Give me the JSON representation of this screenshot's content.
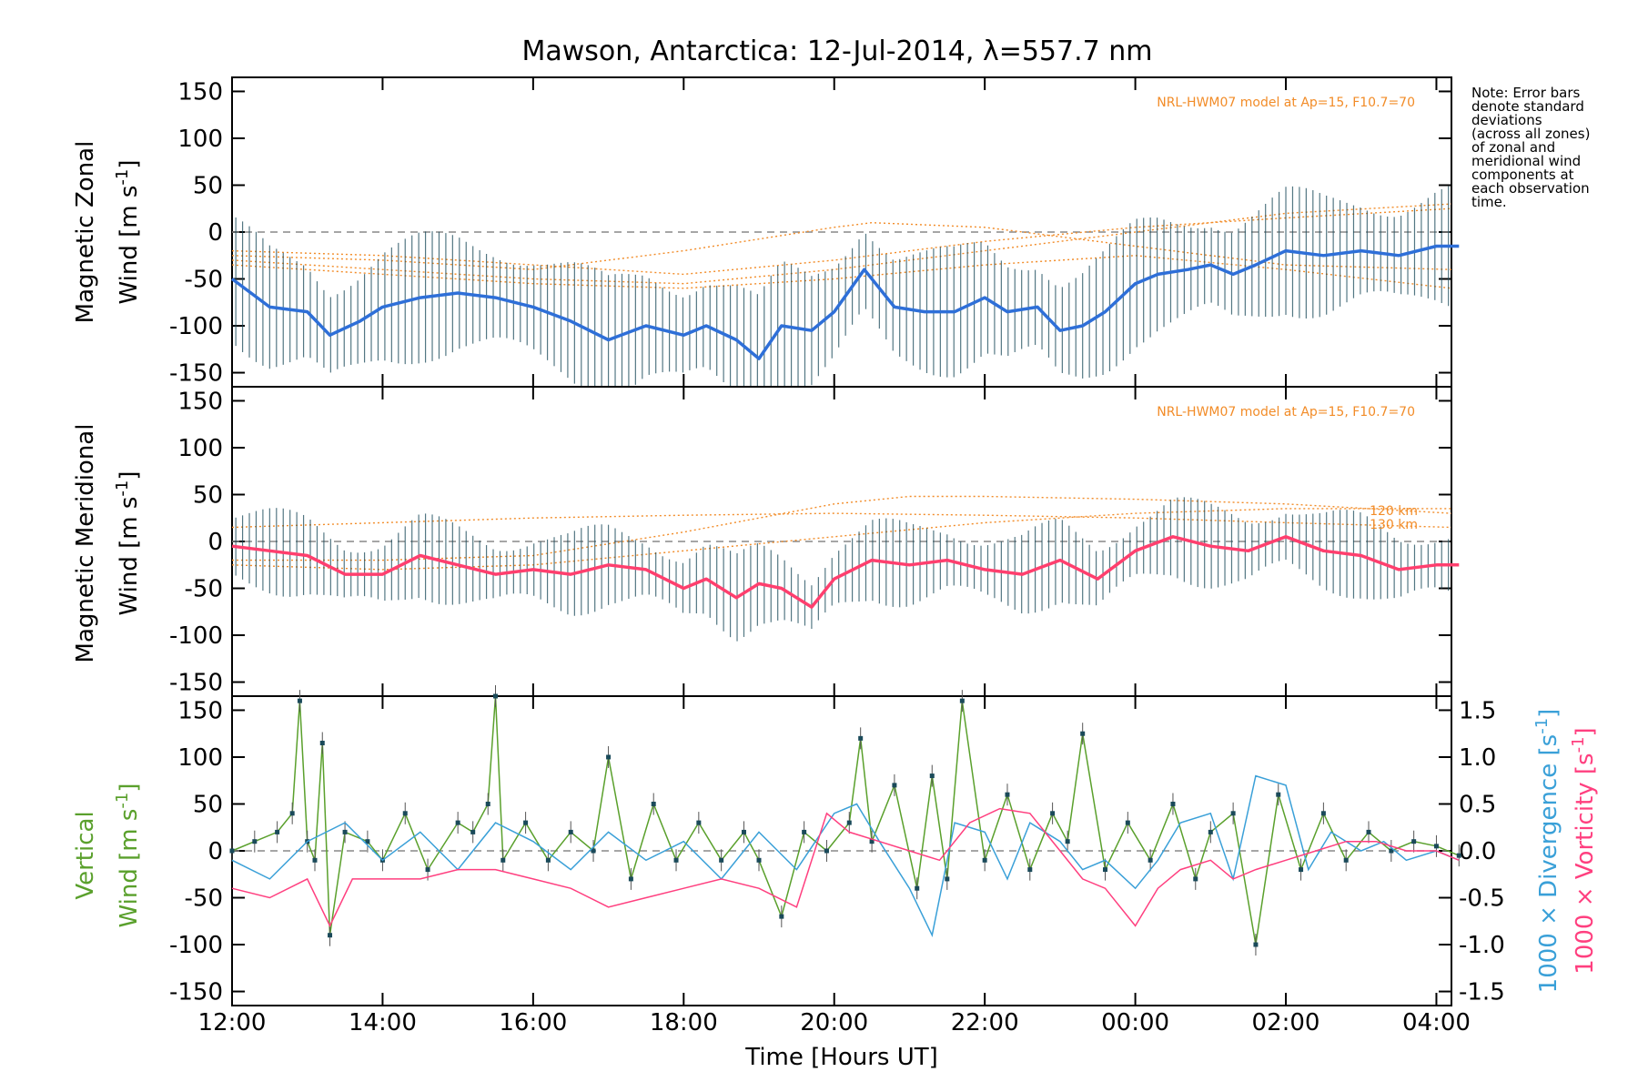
{
  "title": "Mawson, Antarctica: 12-Jul-2014, λ=557.7 nm",
  "note_lines": [
    "Note: Error bars",
    "denote standard",
    "deviations",
    "(across all zones)",
    "of zonal and",
    "meridional wind",
    "components at",
    "each observation",
    "time."
  ],
  "colors": {
    "zonal": "#2e6fd8",
    "zonal_light": "#4fa3e8",
    "meridional": "#ff3f6e",
    "model": "#f28c28",
    "vertical": "#5aa02c",
    "divergence": "#3aa0d8",
    "vorticity": "#ff3f7f",
    "errorbar": "#1a4a5a",
    "zone_points": "#a9a3e0"
  },
  "chart_data": [
    {
      "type": "line",
      "panel": "zonal",
      "ylabel_line1": "Magnetic Zonal",
      "ylabel_line2": "Wind [m s",
      "ylabel_sup": "-1",
      "ylabel_close": "]",
      "ylim": [
        -165,
        165
      ],
      "yticks": [
        -150,
        -100,
        -50,
        0,
        50,
        100,
        150
      ],
      "model_label": "NRL-HWM07 model at Ap=15, F10.7=70",
      "x_hours": [
        12,
        12.5,
        13,
        13.3,
        13.7,
        14,
        14.5,
        15,
        15.5,
        16,
        16.5,
        17,
        17.5,
        18,
        18.3,
        18.7,
        19,
        19.3,
        19.7,
        20,
        20.4,
        20.8,
        21.2,
        21.6,
        22,
        22.3,
        22.7,
        23,
        23.3,
        23.6,
        24,
        24.3,
        24.7,
        25,
        25.3,
        25.6,
        26,
        26.5,
        27,
        27.5,
        28,
        28.3
      ],
      "values": [
        -50,
        -80,
        -85,
        -110,
        -95,
        -80,
        -70,
        -65,
        -70,
        -80,
        -95,
        -115,
        -100,
        -110,
        -100,
        -115,
        -135,
        -100,
        -105,
        -85,
        -40,
        -80,
        -85,
        -85,
        -70,
        -85,
        -80,
        -105,
        -100,
        -85,
        -55,
        -45,
        -40,
        -35,
        -45,
        -35,
        -20,
        -25,
        -20,
        -25,
        -15,
        -15
      ],
      "model_curves": [
        {
          "x_hours": [
            12,
            14,
            16,
            18,
            20,
            22,
            24,
            26,
            28.2
          ],
          "values": [
            -20,
            -25,
            -35,
            -45,
            -30,
            -10,
            5,
            15,
            25
          ]
        },
        {
          "x_hours": [
            12,
            14,
            16,
            18,
            20,
            20.5,
            22,
            24,
            26,
            28.2
          ],
          "values": [
            -25,
            -30,
            -40,
            -20,
            5,
            10,
            5,
            -15,
            -35,
            -40
          ]
        },
        {
          "x_hours": [
            12,
            14,
            16,
            18,
            20,
            22,
            24,
            26,
            28.2
          ],
          "values": [
            -30,
            -40,
            -50,
            -55,
            -40,
            -20,
            0,
            20,
            30
          ]
        },
        {
          "x_hours": [
            12,
            14,
            16,
            18,
            20,
            22,
            24,
            26,
            28.2
          ],
          "values": [
            -35,
            -45,
            -55,
            -60,
            -50,
            -35,
            -25,
            -40,
            -60
          ]
        }
      ]
    },
    {
      "type": "line",
      "panel": "meridional",
      "ylabel_line1": "Magnetic Meridional",
      "ylabel_line2": "Wind [m s",
      "ylabel_sup": "-1",
      "ylabel_close": "]",
      "ylim": [
        -165,
        165
      ],
      "yticks": [
        -150,
        -100,
        -50,
        0,
        50,
        100,
        150
      ],
      "model_label": "NRL-HWM07 model at Ap=15, F10.7=70",
      "model_altitude_labels": [
        "120 km",
        "130 km"
      ],
      "x_hours": [
        12,
        12.5,
        13,
        13.5,
        14,
        14.5,
        15,
        15.5,
        16,
        16.5,
        17,
        17.5,
        18,
        18.3,
        18.7,
        19,
        19.3,
        19.7,
        20,
        20.5,
        21,
        21.5,
        22,
        22.5,
        23,
        23.5,
        24,
        24.5,
        25,
        25.5,
        26,
        26.5,
        27,
        27.5,
        28,
        28.3
      ],
      "values": [
        -5,
        -10,
        -15,
        -35,
        -35,
        -15,
        -25,
        -35,
        -30,
        -35,
        -25,
        -30,
        -50,
        -40,
        -60,
        -45,
        -50,
        -70,
        -40,
        -20,
        -25,
        -20,
        -30,
        -35,
        -20,
        -40,
        -10,
        5,
        -5,
        -10,
        5,
        -10,
        -15,
        -30,
        -25,
        -25
      ],
      "model_curves": [
        {
          "x_hours": [
            12,
            14,
            16,
            18,
            20,
            21,
            22,
            24,
            26,
            28.2
          ],
          "values": [
            -20,
            -20,
            -15,
            10,
            40,
            48,
            48,
            45,
            40,
            30
          ]
        },
        {
          "x_hours": [
            12,
            14,
            16,
            18,
            20,
            22,
            24,
            26,
            28.2
          ],
          "values": [
            15,
            20,
            25,
            28,
            30,
            28,
            25,
            20,
            15
          ]
        },
        {
          "x_hours": [
            12,
            14,
            16,
            18,
            20,
            22,
            24,
            26,
            28.2
          ],
          "values": [
            -25,
            -30,
            -25,
            -10,
            5,
            20,
            30,
            35,
            35
          ]
        }
      ]
    },
    {
      "type": "line",
      "panel": "vertical",
      "ylabel_line1": "Vertical",
      "ylabel_line2": "Wind [m s",
      "ylabel_sup": "-1",
      "ylabel_close": "]",
      "ylim": [
        -165,
        165
      ],
      "yticks": [
        -150,
        -100,
        -50,
        0,
        50,
        100,
        150
      ],
      "y2lim": [
        -1.65,
        1.65
      ],
      "y2ticks": [
        "-1.5",
        "-1.0",
        "-0.5",
        "0.0",
        "0.5",
        "1.0",
        "1.5"
      ],
      "y2label_div": "1000 × Divergence [s",
      "y2label_vort": "1000 × Vorticity [s",
      "y2label_sup": "-1",
      "y2label_close": "]",
      "series": [
        {
          "name": "Vertical",
          "x_hours": [
            12,
            12.3,
            12.6,
            12.8,
            12.9,
            13.0,
            13.1,
            13.2,
            13.3,
            13.5,
            13.8,
            14,
            14.3,
            14.6,
            15,
            15.2,
            15.4,
            15.5,
            15.6,
            15.9,
            16.2,
            16.5,
            16.8,
            17.0,
            17.3,
            17.6,
            17.9,
            18.2,
            18.5,
            18.8,
            19.0,
            19.3,
            19.6,
            19.9,
            20.2,
            20.35,
            20.5,
            20.8,
            21.1,
            21.3,
            21.5,
            21.7,
            22.0,
            22.3,
            22.6,
            22.9,
            23.1,
            23.3,
            23.6,
            23.9,
            24.2,
            24.5,
            24.8,
            25.0,
            25.3,
            25.6,
            25.9,
            26.2,
            26.5,
            26.8,
            27.1,
            27.4,
            27.7,
            28.0,
            28.3
          ],
          "values": [
            0,
            10,
            20,
            40,
            160,
            10,
            -10,
            115,
            -90,
            20,
            10,
            -10,
            40,
            -20,
            30,
            20,
            50,
            165,
            -10,
            30,
            -10,
            20,
            0,
            100,
            -30,
            50,
            -10,
            30,
            -10,
            20,
            -10,
            -70,
            20,
            0,
            30,
            120,
            10,
            70,
            -40,
            80,
            -30,
            160,
            -10,
            60,
            -20,
            40,
            10,
            125,
            -20,
            30,
            -10,
            50,
            -30,
            20,
            40,
            -100,
            60,
            -20,
            40,
            -10,
            20,
            0,
            10,
            5,
            -5
          ]
        },
        {
          "name": "Divergence",
          "x_hours": [
            12,
            12.5,
            13,
            13.5,
            14,
            14.5,
            15,
            15.5,
            16,
            16.5,
            17,
            17.5,
            18,
            18.5,
            19,
            19.5,
            20,
            20.3,
            20.6,
            21,
            21.3,
            21.6,
            22,
            22.3,
            22.6,
            23,
            23.3,
            23.6,
            24,
            24.3,
            24.6,
            25,
            25.3,
            25.6,
            26,
            26.3,
            26.6,
            27,
            27.3,
            27.6,
            28,
            28.3
          ],
          "values": [
            -0.1,
            -0.3,
            0.1,
            0.3,
            -0.1,
            0.2,
            -0.2,
            0.3,
            0.1,
            -0.2,
            0.2,
            -0.1,
            0.1,
            -0.3,
            0.2,
            -0.2,
            0.4,
            0.5,
            0.1,
            -0.4,
            -0.9,
            0.3,
            0.2,
            -0.3,
            0.3,
            0.1,
            -0.2,
            -0.1,
            -0.4,
            -0.1,
            0.3,
            0.4,
            -0.3,
            0.8,
            0.7,
            -0.2,
            0.2,
            0.0,
            0.1,
            -0.1,
            0.0,
            -0.1
          ]
        },
        {
          "name": "Vorticity",
          "x_hours": [
            12,
            12.5,
            13,
            13.3,
            13.6,
            14,
            14.5,
            15,
            15.5,
            16,
            16.5,
            17,
            17.5,
            18,
            18.5,
            19,
            19.5,
            19.9,
            20.2,
            20.6,
            21,
            21.4,
            21.8,
            22.2,
            22.6,
            23,
            23.3,
            23.6,
            24,
            24.3,
            24.6,
            25,
            25.3,
            25.6,
            26,
            26.4,
            26.8,
            27.2,
            27.6,
            28,
            28.3
          ],
          "values": [
            -0.4,
            -0.5,
            -0.3,
            -0.8,
            -0.3,
            -0.3,
            -0.3,
            -0.2,
            -0.2,
            -0.3,
            -0.4,
            -0.6,
            -0.5,
            -0.4,
            -0.3,
            -0.4,
            -0.6,
            0.4,
            0.2,
            0.1,
            0.0,
            -0.1,
            0.3,
            0.45,
            0.4,
            0.0,
            -0.3,
            -0.4,
            -0.8,
            -0.4,
            -0.2,
            -0.1,
            -0.3,
            -0.2,
            -0.1,
            0.0,
            0.1,
            0.1,
            0.0,
            0.0,
            -0.1
          ]
        }
      ]
    }
  ],
  "xaxis": {
    "label": "Time [Hours UT]",
    "tick_hours": [
      12,
      14,
      16,
      18,
      20,
      22,
      24,
      26,
      28
    ],
    "tick_labels": [
      "12:00",
      "14:00",
      "16:00",
      "18:00",
      "20:00",
      "22:00",
      "00:00",
      "02:00",
      "04:00"
    ],
    "range_hours": [
      12,
      28.2
    ]
  }
}
